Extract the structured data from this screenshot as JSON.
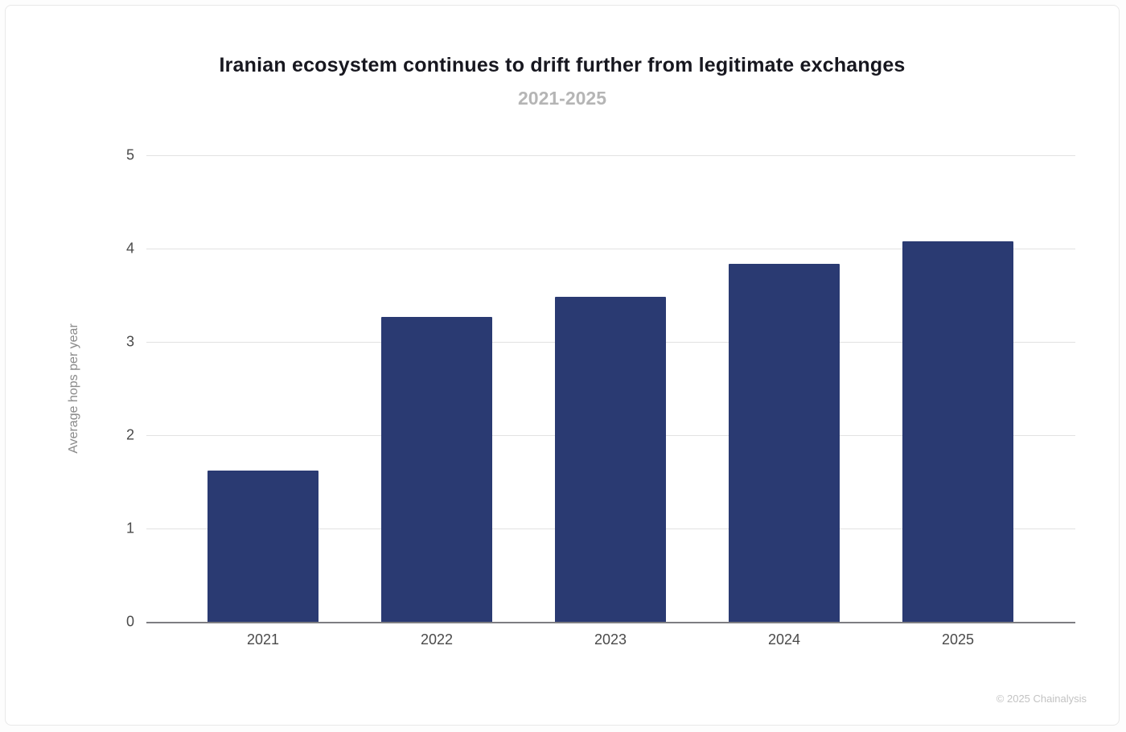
{
  "header": {
    "title": "Iranian ecosystem continues to drift further from legitimate exchanges",
    "subtitle": "2021-2025"
  },
  "footer": {
    "credit": "© 2025 Chainalysis"
  },
  "colors": {
    "bar": "#2a3a72",
    "gridline": "#e2e2e2",
    "axis_line": "#7d7d82",
    "tick_text": "#4a4a4a",
    "subtitle_text": "#b5b5b5",
    "footer_text": "#c3c3c3"
  },
  "chart_data": {
    "type": "bar",
    "categories": [
      "2021",
      "2022",
      "2023",
      "2024",
      "2025"
    ],
    "values": [
      1.62,
      3.27,
      3.48,
      3.84,
      4.08
    ],
    "title": "Iranian ecosystem continues to drift further from legitimate exchanges",
    "subtitle": "2021-2025",
    "xlabel": "",
    "ylabel": "Average hops per year",
    "ylim": [
      0,
      5
    ],
    "yticks": [
      0,
      1,
      2,
      3,
      4,
      5
    ],
    "grid": true,
    "legend": false,
    "bar_color": "#2a3a72"
  }
}
